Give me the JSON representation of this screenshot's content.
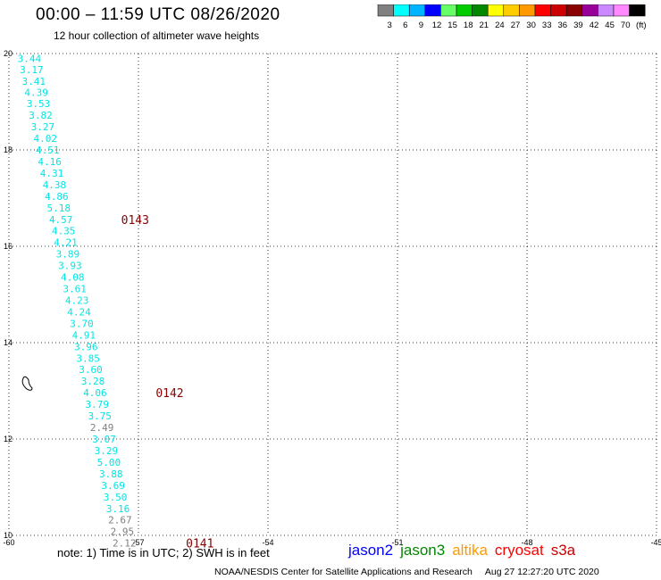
{
  "header": {
    "title": "00:00 – 11:59 UTC 08/26/2020",
    "subtitle": "12 hour collection of altimeter wave heights"
  },
  "colorbar": {
    "labels": [
      "3",
      "6",
      "9",
      "12",
      "15",
      "18",
      "21",
      "24",
      "27",
      "30",
      "33",
      "36",
      "39",
      "42",
      "45",
      "70",
      "(ft)"
    ],
    "colors": [
      "#808080",
      "#00ffff",
      "#00b4ff",
      "#0000ff",
      "#66ff66",
      "#00cc00",
      "#008800",
      "#ffff00",
      "#ffcc00",
      "#ff9900",
      "#ff0000",
      "#cc0000",
      "#880000",
      "#990099",
      "#cc88ff",
      "#ff88ff",
      "#000000"
    ]
  },
  "footer": {
    "note": "note:  1) Time is in UTC;  2) SWH is in feet",
    "credit": "NOAA/NESDIS Center for Satellite Applications and Research",
    "credit_time": "Aug 27 12:27:20 UTC 2020"
  },
  "legend": [
    {
      "name": "jason2",
      "color": "#0000ff"
    },
    {
      "name": "jason3",
      "color": "#008800"
    },
    {
      "name": "altika",
      "color": "#ff9900"
    },
    {
      "name": "cryosat",
      "color": "#ff0000"
    },
    {
      "name": "s3a",
      "color": "#cc0000"
    }
  ],
  "chart_data": {
    "type": "scatter",
    "xlim": [
      -60,
      -45
    ],
    "ylim": [
      10,
      20
    ],
    "x_ticks": [
      "-60",
      "-57",
      "-54",
      "-51",
      "-48",
      "-45"
    ],
    "y_ticks": [
      "20",
      "18",
      "16",
      "14",
      "12",
      "10"
    ],
    "grid": true,
    "points": [
      {
        "lon": -59.8,
        "lat": 19.9,
        "v": "3.44",
        "color": "#00e5e5"
      },
      {
        "lon": -59.75,
        "lat": 19.67,
        "v": "3.17",
        "color": "#00e5e5"
      },
      {
        "lon": -59.7,
        "lat": 19.43,
        "v": "3.41",
        "color": "#00e5e5"
      },
      {
        "lon": -59.64,
        "lat": 19.19,
        "v": "4.39",
        "color": "#00e5e5"
      },
      {
        "lon": -59.59,
        "lat": 18.96,
        "v": "3.53",
        "color": "#00e5e5"
      },
      {
        "lon": -59.54,
        "lat": 18.72,
        "v": "3.82",
        "color": "#00e5e5"
      },
      {
        "lon": -59.49,
        "lat": 18.48,
        "v": "3.27",
        "color": "#00e5e5"
      },
      {
        "lon": -59.43,
        "lat": 18.24,
        "v": "4.02",
        "color": "#00e5e5"
      },
      {
        "lon": -59.38,
        "lat": 18.0,
        "v": "4.51",
        "color": "#00e5e5"
      },
      {
        "lon": -59.33,
        "lat": 17.76,
        "v": "4.16",
        "color": "#00e5e5"
      },
      {
        "lon": -59.28,
        "lat": 17.52,
        "v": "4.31",
        "color": "#00e5e5"
      },
      {
        "lon": -59.22,
        "lat": 17.28,
        "v": "4.38",
        "color": "#00e5e5"
      },
      {
        "lon": -59.17,
        "lat": 17.04,
        "v": "4.86",
        "color": "#00e5e5"
      },
      {
        "lon": -59.12,
        "lat": 16.8,
        "v": "5.18",
        "color": "#00e5e5"
      },
      {
        "lon": -59.07,
        "lat": 16.56,
        "v": "4.57",
        "color": "#00e5e5"
      },
      {
        "lon": -59.01,
        "lat": 16.32,
        "v": "4.35",
        "color": "#00e5e5"
      },
      {
        "lon": -58.96,
        "lat": 16.08,
        "v": "4.21",
        "color": "#00e5e5"
      },
      {
        "lon": -58.91,
        "lat": 15.84,
        "v": "3.89",
        "color": "#00e5e5"
      },
      {
        "lon": -58.86,
        "lat": 15.6,
        "v": "3.93",
        "color": "#00e5e5"
      },
      {
        "lon": -58.8,
        "lat": 15.36,
        "v": "4.08",
        "color": "#00e5e5"
      },
      {
        "lon": -58.75,
        "lat": 15.12,
        "v": "3.61",
        "color": "#00e5e5"
      },
      {
        "lon": -58.7,
        "lat": 14.88,
        "v": "4.23",
        "color": "#00e5e5"
      },
      {
        "lon": -58.65,
        "lat": 14.64,
        "v": "4.24",
        "color": "#00e5e5"
      },
      {
        "lon": -58.59,
        "lat": 14.4,
        "v": "3.70",
        "color": "#00e5e5"
      },
      {
        "lon": -58.54,
        "lat": 14.16,
        "v": "4.91",
        "color": "#00e5e5"
      },
      {
        "lon": -58.49,
        "lat": 13.92,
        "v": "3.96",
        "color": "#00e5e5"
      },
      {
        "lon": -58.44,
        "lat": 13.68,
        "v": "3.85",
        "color": "#00e5e5"
      },
      {
        "lon": -58.38,
        "lat": 13.44,
        "v": "3.60",
        "color": "#00e5e5"
      },
      {
        "lon": -58.33,
        "lat": 13.2,
        "v": "3.28",
        "color": "#00e5e5"
      },
      {
        "lon": -58.28,
        "lat": 12.96,
        "v": "4.06",
        "color": "#00e5e5"
      },
      {
        "lon": -58.23,
        "lat": 12.72,
        "v": "3.79",
        "color": "#00e5e5"
      },
      {
        "lon": -58.17,
        "lat": 12.48,
        "v": "3.75",
        "color": "#00e5e5"
      },
      {
        "lon": -58.12,
        "lat": 12.24,
        "v": "2.49",
        "color": "#808080"
      },
      {
        "lon": -58.07,
        "lat": 12.0,
        "v": "3.07",
        "color": "#00e5e5"
      },
      {
        "lon": -58.02,
        "lat": 11.76,
        "v": "3.29",
        "color": "#00e5e5"
      },
      {
        "lon": -57.96,
        "lat": 11.52,
        "v": "5.00",
        "color": "#00e5e5"
      },
      {
        "lon": -57.91,
        "lat": 11.28,
        "v": "3.88",
        "color": "#00e5e5"
      },
      {
        "lon": -57.86,
        "lat": 11.04,
        "v": "3.69",
        "color": "#00e5e5"
      },
      {
        "lon": -57.81,
        "lat": 10.8,
        "v": "3.50",
        "color": "#00e5e5"
      },
      {
        "lon": -57.75,
        "lat": 10.56,
        "v": "3.16",
        "color": "#00e5e5"
      },
      {
        "lon": -57.7,
        "lat": 10.32,
        "v": "2.67",
        "color": "#808080"
      },
      {
        "lon": -57.65,
        "lat": 10.08,
        "v": "2.95",
        "color": "#808080"
      },
      {
        "lon": -57.6,
        "lat": 9.84,
        "v": "2.12",
        "color": "#808080"
      }
    ],
    "pass_labels": [
      {
        "lon": -57.4,
        "lat": 16.56,
        "text": "0143",
        "color": "#880000"
      },
      {
        "lon": -56.6,
        "lat": 12.96,
        "text": "0142",
        "color": "#880000"
      },
      {
        "lon": -55.9,
        "lat": 9.84,
        "text": "0141",
        "color": "#880000"
      }
    ]
  }
}
